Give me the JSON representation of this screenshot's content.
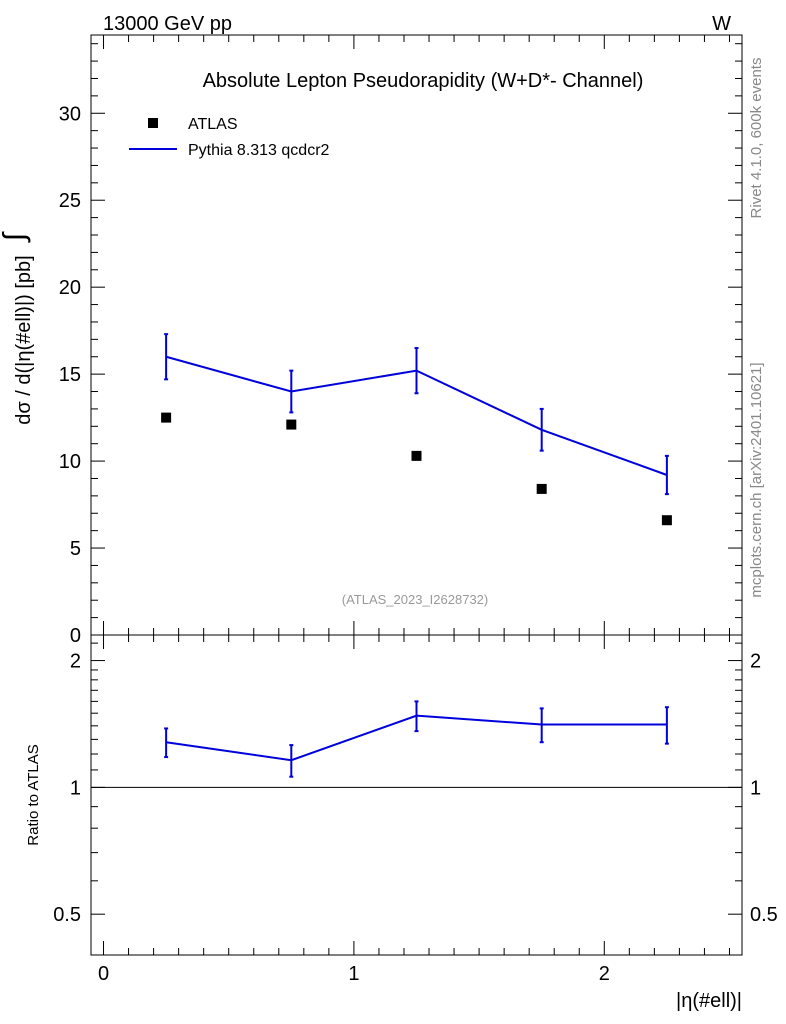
{
  "header": {
    "left": "13000 GeV pp",
    "right": "W"
  },
  "side_labels": {
    "rivet": "Rivet 4.1.0,  600k events",
    "mcplots": "mcplots.cern.ch [arXiv:2401.10621]"
  },
  "colors": {
    "mc": "#0000dd",
    "data": "#000000",
    "watermark": "#999999"
  },
  "chart_data": [
    {
      "type": "scatter",
      "title": "Absolute Lepton Pseudorapidity (W+D*- Channel)",
      "ylabel": "dσ / d(|η(#ell)|) [pb]",
      "ylabel_prefix": "∫",
      "xlabel": "|η(#ell)|",
      "xlim": [
        -0.05,
        2.55
      ],
      "ylim": [
        0,
        34.5
      ],
      "yticks": [
        0,
        5,
        10,
        15,
        20,
        25,
        30
      ],
      "ytick_labels": [
        "0",
        "5",
        "10",
        "15",
        "20",
        "25",
        "30"
      ],
      "watermark": "(ATLAS_2023_I2628732)",
      "legend": [
        {
          "name": "ATLAS",
          "marker": "square"
        },
        {
          "name": "Pythia 8.313 qcdcr2",
          "marker": "line"
        }
      ],
      "series": [
        {
          "name": "ATLAS",
          "x": [
            0.25,
            0.75,
            1.25,
            1.75,
            2.25
          ],
          "y": [
            12.5,
            12.1,
            10.3,
            8.4,
            6.6
          ]
        },
        {
          "name": "Pythia 8.313 qcdcr2",
          "x": [
            0.25,
            0.75,
            1.25,
            1.75,
            2.25
          ],
          "y": [
            16.0,
            14.0,
            15.2,
            11.8,
            9.2
          ],
          "err": [
            1.3,
            1.2,
            1.3,
            1.2,
            1.1
          ]
        }
      ]
    },
    {
      "type": "line",
      "ylabel": "Ratio to ATLAS",
      "xlabel": "|η(#ell)|",
      "xlim": [
        -0.05,
        2.55
      ],
      "ylim": [
        0.4,
        2.3
      ],
      "yscale": "log",
      "yticks": [
        0.5,
        1,
        2
      ],
      "ytick_labels": [
        "0.5",
        "1",
        "2"
      ],
      "xticks": [
        0,
        1,
        2
      ],
      "xtick_labels": [
        "0",
        "1",
        "2"
      ],
      "reference_line": 1,
      "series": [
        {
          "name": "Pythia 8.313 qcdcr2 / ATLAS",
          "x": [
            0.25,
            0.75,
            1.25,
            1.75,
            2.25
          ],
          "y": [
            1.28,
            1.16,
            1.48,
            1.41,
            1.41
          ],
          "err": [
            0.1,
            0.1,
            0.12,
            0.13,
            0.14
          ]
        }
      ]
    }
  ]
}
